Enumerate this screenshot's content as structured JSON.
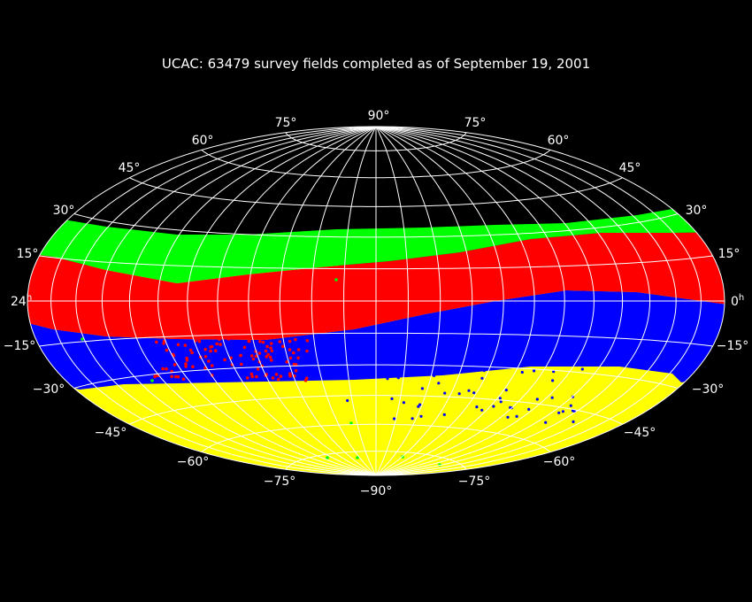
{
  "title": "UCAC: 63479 survey fields completed as of September 19, 2001",
  "colors": {
    "background": "#000000",
    "grid": "#ffffff",
    "band_green": "#00ff00",
    "band_red": "#ff0000",
    "band_blue": "#0000ff",
    "band_yellow": "#ffff00"
  },
  "labels": {
    "top": "90°",
    "bottom": "−90°",
    "left_meridian": "24",
    "left_meridian_sup": "h",
    "right_meridian": "0",
    "right_meridian_sup": "h",
    "left": {
      "n75": "75°",
      "n60": "60°",
      "n45": "45°",
      "n30": "30°",
      "n15": "15°",
      "s15": "−15°",
      "s30": "−30°",
      "s45": "−45°",
      "s60": "−60°",
      "s75": "−75°"
    },
    "right": {
      "n75": "75°",
      "n60": "60°",
      "n45": "45°",
      "n30": "30°",
      "n15": "15°",
      "s15": "−15°",
      "s30": "−30°",
      "s45": "−45°",
      "s60": "−60°",
      "s75": "−75°"
    }
  }
}
